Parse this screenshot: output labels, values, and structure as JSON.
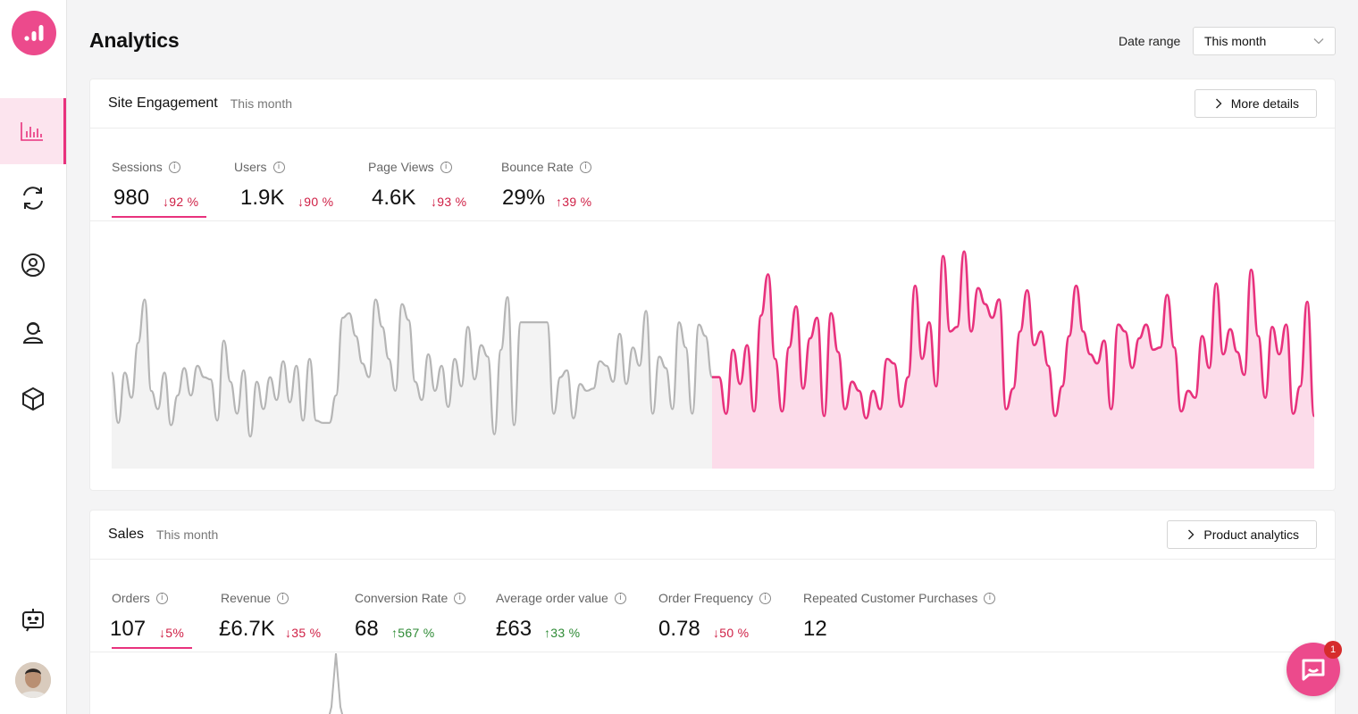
{
  "header": {
    "title": "Analytics",
    "date_range_label": "Date range",
    "date_range_value": "This month"
  },
  "sidebar": {
    "logo": "bar-chart-logo-icon",
    "items": [
      {
        "icon": "analytics-chart-icon",
        "active": true
      },
      {
        "icon": "refresh-sync-icon",
        "active": false
      },
      {
        "icon": "user-circle-icon",
        "active": false
      },
      {
        "icon": "support-agent-icon",
        "active": false
      },
      {
        "icon": "cube-box-icon",
        "active": false
      }
    ],
    "bottom": [
      {
        "icon": "bot-chat-icon"
      },
      {
        "icon": "avatar"
      }
    ]
  },
  "engagement": {
    "title": "Site Engagement",
    "subtitle": "This month",
    "button": "More details",
    "metrics": [
      {
        "label": "Sessions",
        "value": "980",
        "delta": "↓92 %",
        "direction": "down",
        "selected": true
      },
      {
        "label": "Users",
        "value": "1.9K",
        "delta": "↓90 %",
        "direction": "down",
        "selected": false
      },
      {
        "label": "Page Views",
        "value": "4.6K",
        "delta": "↓93 %",
        "direction": "down",
        "selected": false
      },
      {
        "label": "Bounce Rate",
        "value": "29%",
        "delta": "↑39 %",
        "direction": "up-bad",
        "selected": false
      }
    ],
    "chart": {
      "colors": {
        "previous": "#b5b5b5",
        "previous_fill": "#f3f3f3",
        "current": "#e8327d",
        "current_fill": "#fcdcea"
      },
      "previous_series": [
        42,
        20,
        42,
        31,
        55,
        74,
        34,
        26,
        42,
        19,
        32,
        44,
        32,
        45,
        40,
        39,
        21,
        56,
        38,
        24,
        43,
        14,
        38,
        26,
        40,
        30,
        47,
        29,
        45,
        21,
        48,
        21,
        20,
        20,
        32,
        66,
        68,
        58,
        46,
        40,
        74,
        62,
        48,
        34,
        72,
        65,
        38,
        30,
        50,
        34,
        45,
        27,
        48,
        36,
        62,
        39,
        54,
        49,
        15,
        52,
        75,
        19,
        64,
        64,
        64,
        64,
        64,
        24,
        40,
        43,
        22,
        37,
        34,
        35,
        47,
        45,
        38,
        59,
        37,
        53,
        45,
        69,
        24,
        49,
        44,
        26,
        64,
        53,
        24,
        63,
        58,
        40
      ],
      "current_series": [
        40,
        24,
        52,
        37,
        54,
        25,
        67,
        85,
        48,
        25,
        53,
        71,
        35,
        57,
        66,
        23,
        68,
        51,
        26,
        38,
        34,
        22,
        34,
        26,
        48,
        46,
        27,
        40,
        80,
        48,
        64,
        36,
        93,
        60,
        62,
        95,
        60,
        79,
        72,
        66,
        74,
        26,
        35,
        60,
        78,
        54,
        60,
        45,
        23,
        36,
        58,
        80,
        60,
        50,
        46,
        56,
        26,
        63,
        60,
        44,
        57,
        63,
        52,
        53,
        76,
        53,
        25,
        34,
        31,
        58,
        44,
        81,
        50,
        61,
        51,
        41,
        87,
        58,
        31,
        62,
        50,
        63,
        24,
        36,
        73,
        23
      ]
    }
  },
  "sales": {
    "title": "Sales",
    "subtitle": "This month",
    "button": "Product analytics",
    "metrics": [
      {
        "label": "Orders",
        "value": "107",
        "delta": "↓5%",
        "direction": "down",
        "selected": true
      },
      {
        "label": "Revenue",
        "value": "£6.7K",
        "delta": "↓35 %",
        "direction": "down",
        "selected": false
      },
      {
        "label": "Conversion Rate",
        "value": "68",
        "delta": "↑567 %",
        "direction": "up",
        "selected": false
      },
      {
        "label": "Average order value",
        "value": "£63",
        "delta": "↑33 %",
        "direction": "up",
        "selected": false
      },
      {
        "label": "Order Frequency",
        "value": "0.78",
        "delta": "↓50 %",
        "direction": "down",
        "selected": false
      },
      {
        "label": "Repeated Customer Purchases",
        "value": "12",
        "delta": "",
        "direction": "none",
        "selected": false
      }
    ]
  },
  "chat": {
    "badge": "1"
  }
}
